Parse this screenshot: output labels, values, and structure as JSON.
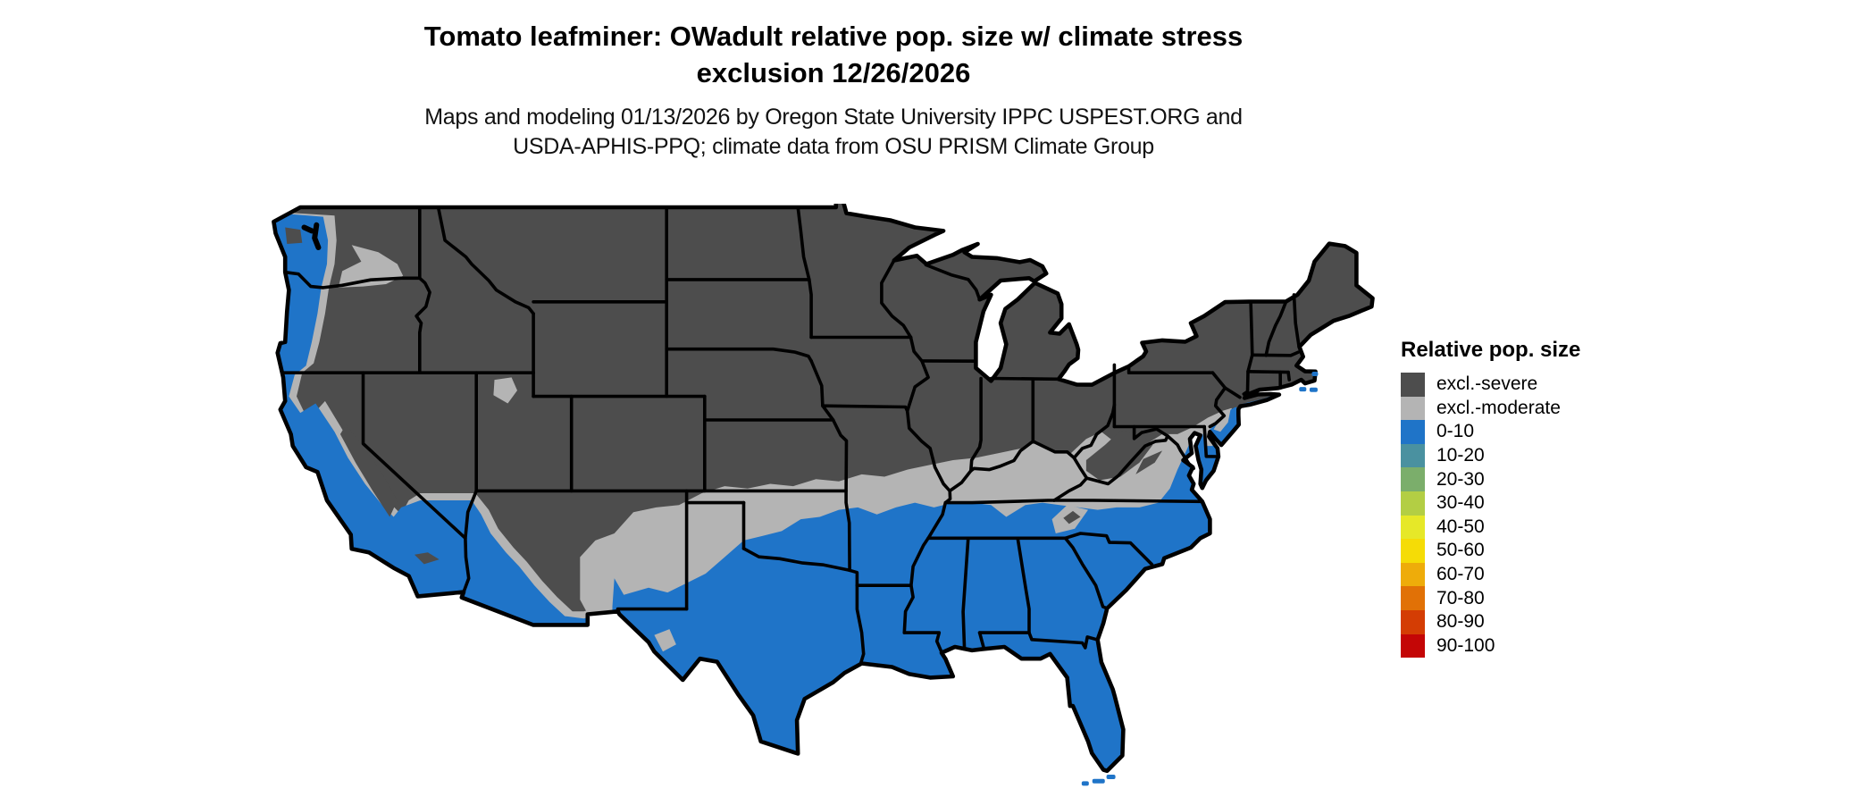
{
  "title": {
    "line1": "Tomato leafminer: OWadult relative pop. size w/ climate stress",
    "line2": "exclusion 12/26/2026"
  },
  "subtitle": {
    "line1": "Maps and modeling 01/13/2026 by Oregon State University IPPC USPEST.ORG and",
    "line2": "USDA-APHIS-PPQ; climate data from OSU PRISM Climate Group"
  },
  "legend": {
    "title": "Relative pop. size",
    "entries": [
      {
        "label": "excl.-severe",
        "color": "#4D4D4D"
      },
      {
        "label": "excl.-moderate",
        "color": "#B4B4B4"
      },
      {
        "label": "0-10",
        "color": "#1F74C8"
      },
      {
        "label": "10-20",
        "color": "#4A91A0"
      },
      {
        "label": "20-30",
        "color": "#7BAE6B"
      },
      {
        "label": "30-40",
        "color": "#B3CE44"
      },
      {
        "label": "40-50",
        "color": "#E6E828"
      },
      {
        "label": "50-60",
        "color": "#F5DC06"
      },
      {
        "label": "60-70",
        "color": "#EEAC0A"
      },
      {
        "label": "70-80",
        "color": "#E17106"
      },
      {
        "label": "80-90",
        "color": "#D43D04"
      },
      {
        "label": "90-100",
        "color": "#C40606"
      }
    ]
  },
  "map": {
    "region": "Contiguous United States",
    "zones_visible_on_map": [
      "excl.-severe",
      "excl.-moderate",
      "0-10"
    ],
    "zone_colors": {
      "excl_severe": "#4D4D4D",
      "excl_moderate": "#B4B4B4",
      "pop_0_10": "#1F74C8"
    },
    "border_color": "#000000",
    "water_background": "#FFFFFF"
  }
}
